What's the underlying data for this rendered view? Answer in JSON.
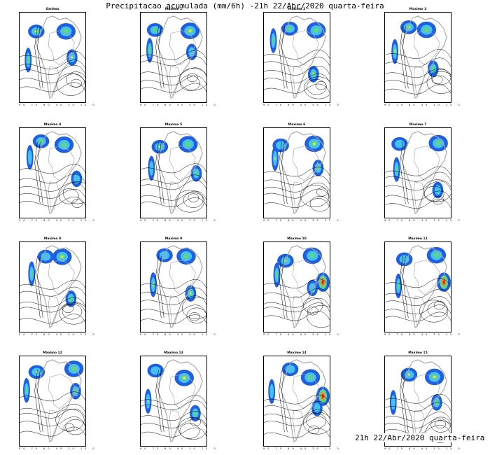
{
  "title": "Precipitacao acumulada (mm/6h) -21h 22/Abr/2020 quarta-feira",
  "footer": "21h 22/Abr/2020 quarta-feira",
  "panels": [
    {
      "label": "Ganhoo"
    },
    {
      "label": "Maximo 1"
    },
    {
      "label": "Maximo 2"
    },
    {
      "label": "Maximo 3"
    },
    {
      "label": "Maximo 4"
    },
    {
      "label": "Maximo 5"
    },
    {
      "label": "Maximo 6"
    },
    {
      "label": "Maximo 7"
    },
    {
      "label": "Maximo 8"
    },
    {
      "label": "Maximo 9"
    },
    {
      "label": "Maximo 10"
    },
    {
      "label": "Maximo 11"
    },
    {
      "label": "Maximo 12"
    },
    {
      "label": "Maximo 13"
    },
    {
      "label": "Maximo 14"
    },
    {
      "label": "Maximo 15"
    }
  ],
  "x_ticks": "90 75 60 45 30 15 0",
  "colors": {
    "rain_light": "#1f5fe0",
    "rain_mid": "#45c0f0",
    "rain_moderate": "#5ad88a",
    "rain_heavy": "#e8e840",
    "rain_very_heavy": "#f08a20",
    "rain_extreme": "#e02020",
    "borders": "#a8a8a8",
    "contours": "#000000"
  }
}
